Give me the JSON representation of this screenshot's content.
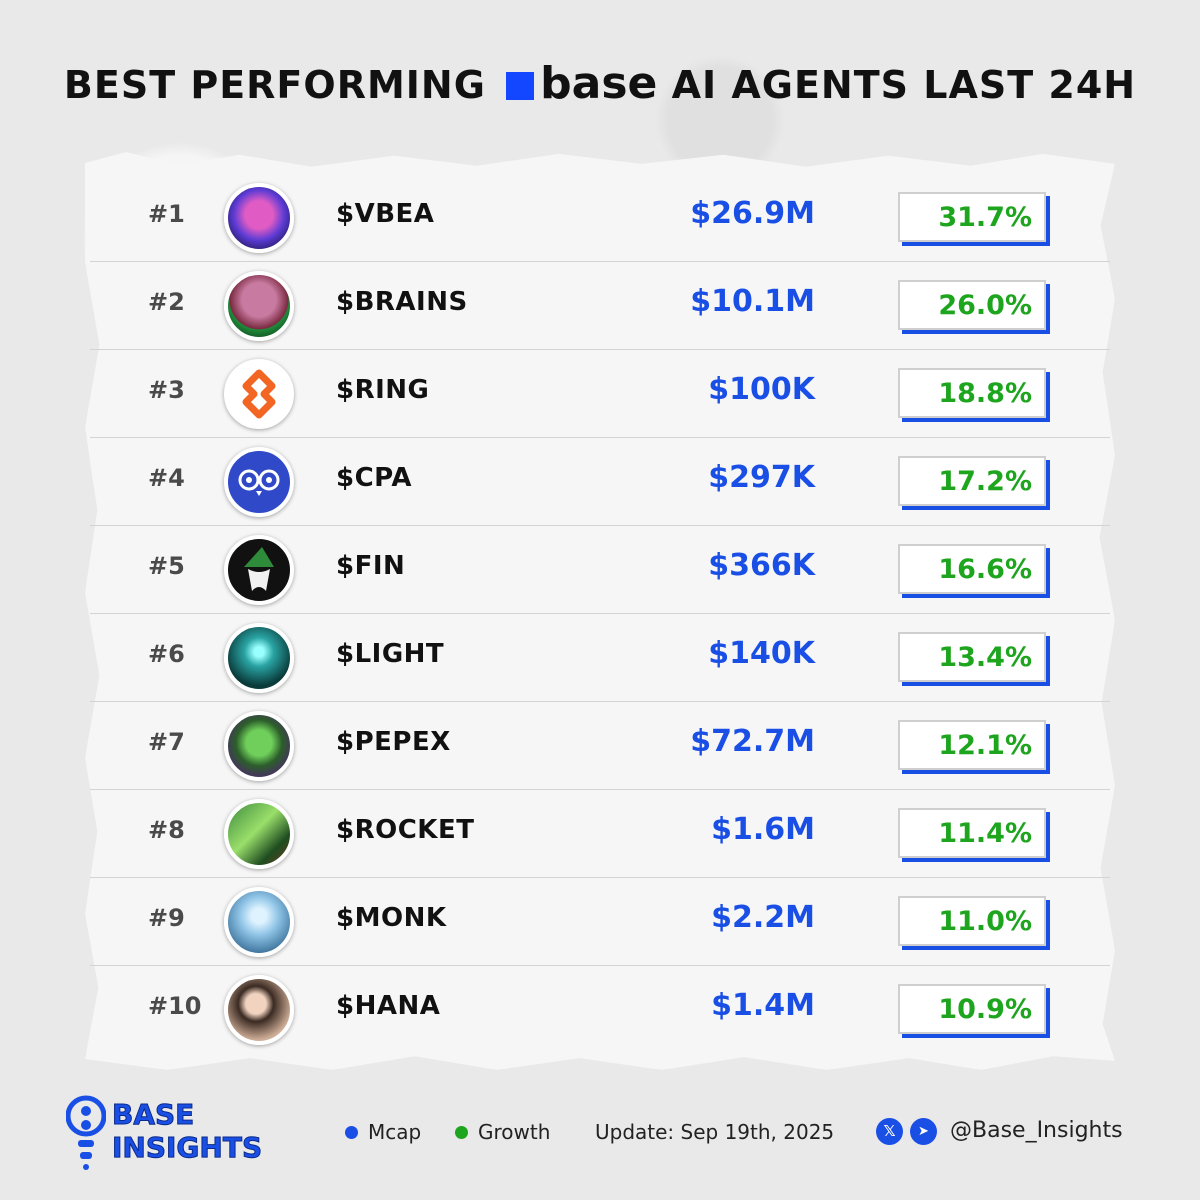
{
  "title": {
    "before": "BEST PERFORMING",
    "brand": "base",
    "after": "AI AGENTS LAST 24H"
  },
  "colors": {
    "accent_blue": "#1a4fe6",
    "growth_green": "#1ea51e"
  },
  "rows": [
    {
      "rank": "#1",
      "ticker": "$VBEA",
      "mcap": "$26.9M",
      "growth": "31.7%"
    },
    {
      "rank": "#2",
      "ticker": "$BRAINS",
      "mcap": "$10.1M",
      "growth": "26.0%"
    },
    {
      "rank": "#3",
      "ticker": "$RING",
      "mcap": "$100K",
      "growth": "18.8%"
    },
    {
      "rank": "#4",
      "ticker": "$CPA",
      "mcap": "$297K",
      "growth": "17.2%"
    },
    {
      "rank": "#5",
      "ticker": "$FIN",
      "mcap": "$366K",
      "growth": "16.6%"
    },
    {
      "rank": "#6",
      "ticker": "$LIGHT",
      "mcap": "$140K",
      "growth": "13.4%"
    },
    {
      "rank": "#7",
      "ticker": "$PEPEX",
      "mcap": "$72.7M",
      "growth": "12.1%"
    },
    {
      "rank": "#8",
      "ticker": "$ROCKET",
      "mcap": "$1.6M",
      "growth": "11.4%"
    },
    {
      "rank": "#9",
      "ticker": "$MONK",
      "mcap": "$2.2M",
      "growth": "11.0%"
    },
    {
      "rank": "#10",
      "ticker": "$HANA",
      "mcap": "$1.4M",
      "growth": "10.9%"
    }
  ],
  "footer": {
    "brand_line1": "BASE",
    "brand_line2": "INSIGHTS",
    "legend_mcap": "Mcap",
    "legend_growth": "Growth",
    "update": "Update: Sep 19th, 2025",
    "handle": "@Base_Insights",
    "x_icon_glyph": "𝕏",
    "telegram_icon_glyph": "➤"
  }
}
